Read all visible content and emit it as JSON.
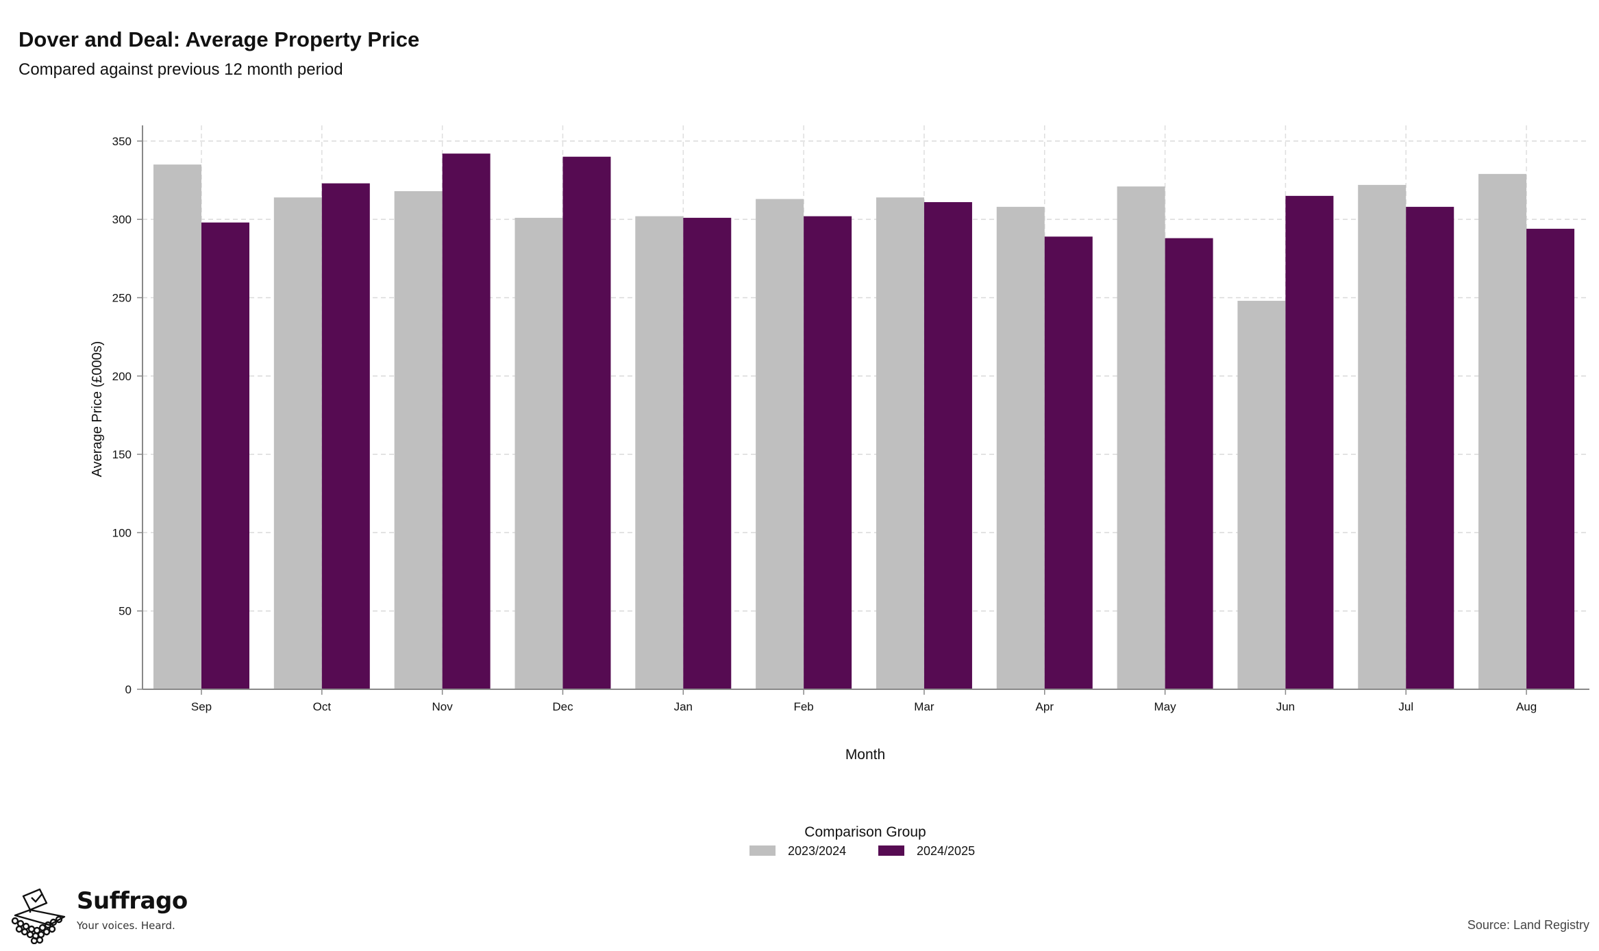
{
  "header": {
    "title": "Dover and Deal: Average Property Price",
    "subtitle": "Compared against previous 12 month period"
  },
  "chart_data": {
    "type": "bar",
    "title": "Dover and Deal: Average Property Price",
    "subtitle": "Compared against previous 12 month period",
    "xlabel": "Month",
    "ylabel": "Average Price (£000s)",
    "ylim": [
      0,
      360
    ],
    "yticks": [
      0,
      50,
      100,
      150,
      200,
      250,
      300,
      350
    ],
    "grid": true,
    "legend_title": "Comparison Group",
    "legend_position": "bottom",
    "categories": [
      "Sep",
      "Oct",
      "Nov",
      "Dec",
      "Jan",
      "Feb",
      "Mar",
      "Apr",
      "May",
      "Jun",
      "Jul",
      "Aug"
    ],
    "series": [
      {
        "name": "2023/2024",
        "color": "#bfbfbf",
        "values": [
          335,
          314,
          318,
          301,
          302,
          313,
          314,
          308,
          321,
          248,
          322,
          329
        ]
      },
      {
        "name": "2024/2025",
        "color": "#560b52",
        "values": [
          298,
          323,
          342,
          340,
          301,
          302,
          311,
          289,
          288,
          315,
          308,
          294
        ]
      }
    ]
  },
  "branding": {
    "name": "Suffrago",
    "tagline": "Your voices. Heard.",
    "logo_icon": "ballot-box-icon"
  },
  "footer": {
    "source": "Source: Land Registry"
  }
}
